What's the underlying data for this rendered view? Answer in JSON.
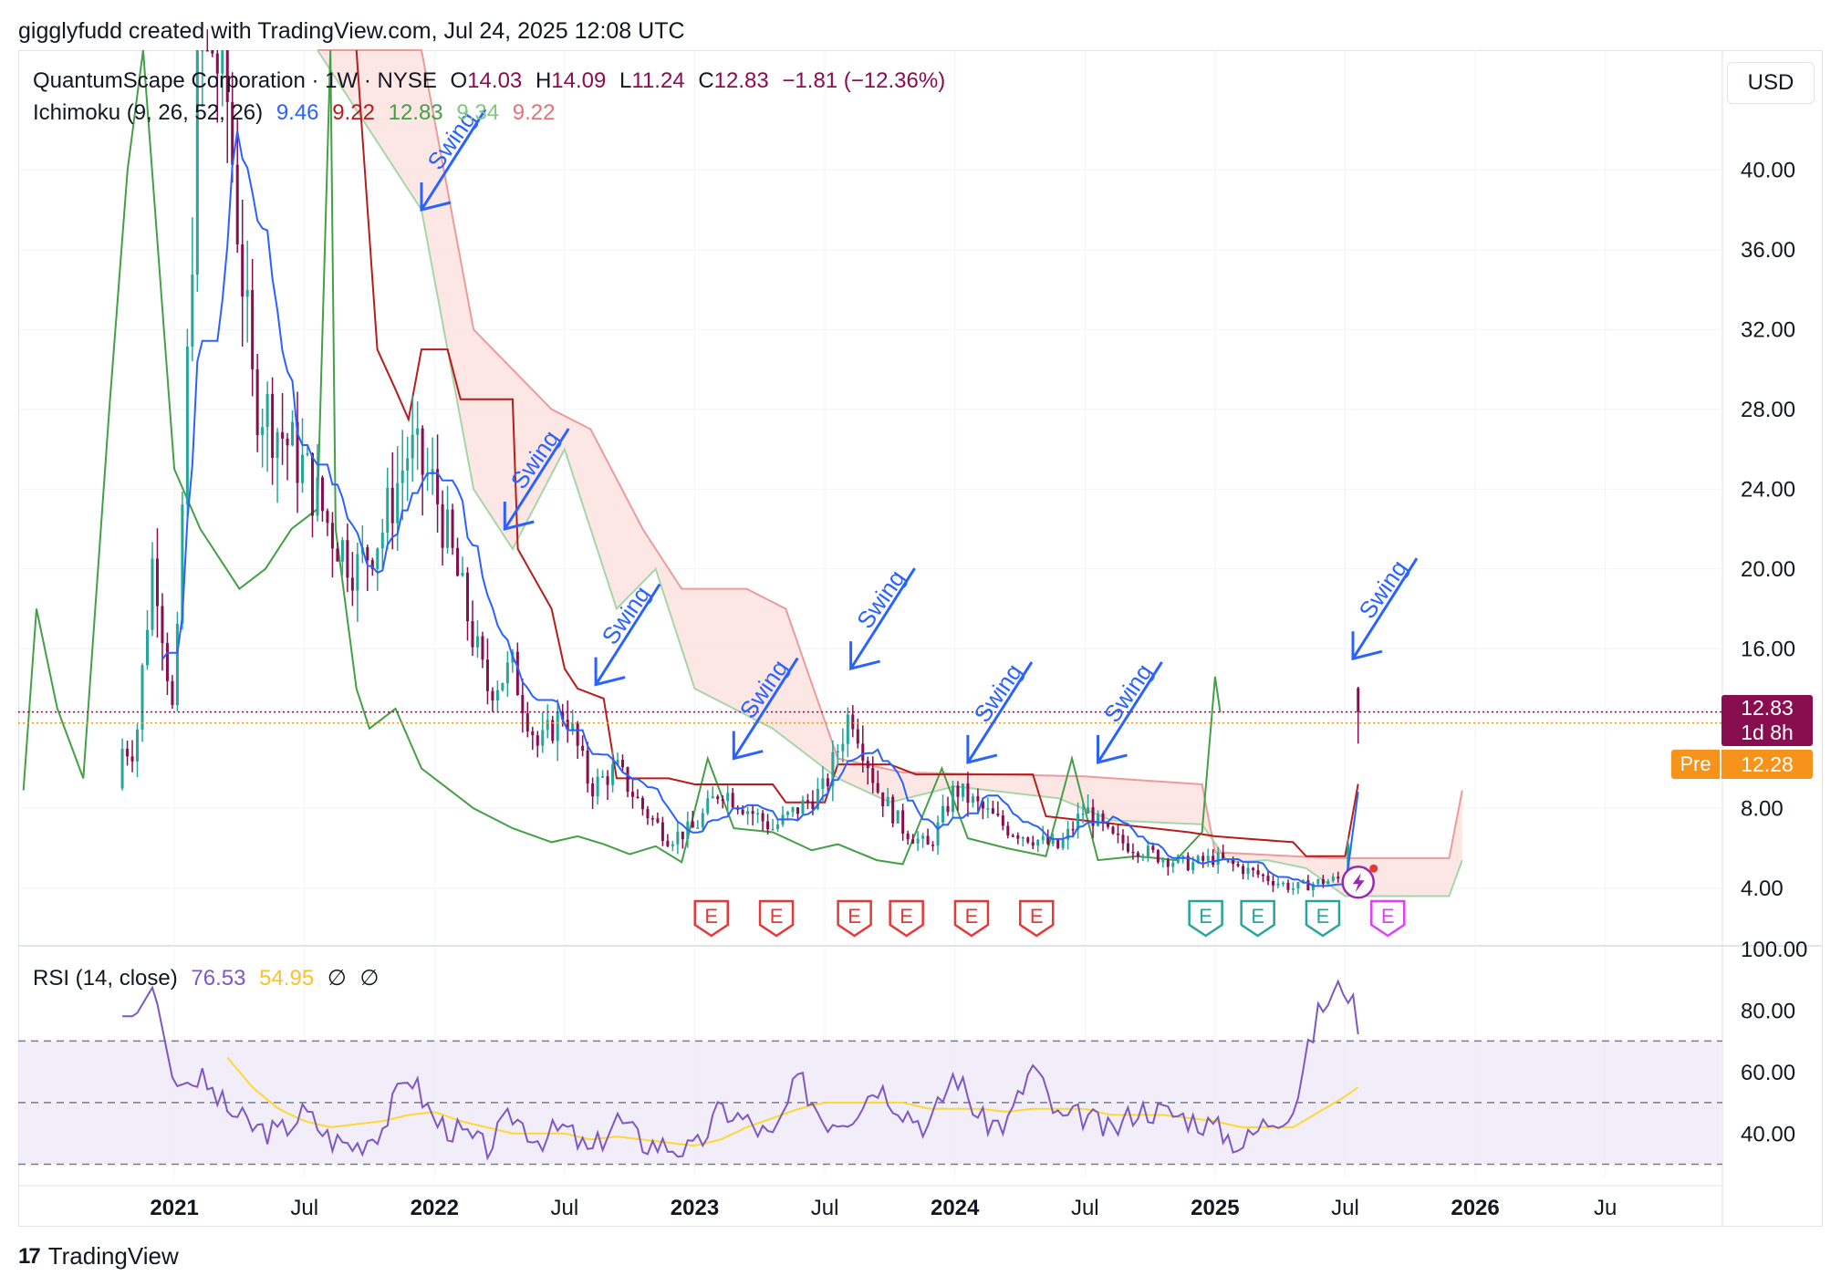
{
  "header": {
    "caption": "gigglyfudd created with TradingView.com, Jul 24, 2025 12:08 UTC"
  },
  "legend": {
    "symbol": "QuantumScape Corporation · 1W · NYSE",
    "open_label": "O",
    "open": "14.03",
    "high_label": "H",
    "high": "14.09",
    "low_label": "L",
    "low": "11.24",
    "close_label": "C",
    "close": "12.83",
    "change": "−1.81 (−12.36%)",
    "ichimoku_label": "Ichimoku (9, 26, 52, 26)",
    "ich_conversion": "9.46",
    "ich_base": "9.22",
    "ich_lagging": "12.83",
    "ich_leadA": "9.34",
    "ich_leadB": "9.22",
    "rsi_label": "RSI (14, close)",
    "rsi_value": "76.53",
    "rsi_ma": "54.95",
    "rsi_na1": "∅",
    "rsi_na2": "∅"
  },
  "currency": "USD",
  "price_tag": {
    "value": "12.83",
    "countdown": "1d 8h",
    "pre_label": "Pre",
    "pre_value": "12.28"
  },
  "footer": {
    "brand": "TradingView"
  },
  "colors": {
    "up": "#26a69a",
    "down": "#880e4f",
    "conversion": "#2962ff",
    "base": "#b71c1c",
    "lagging": "#43a047",
    "leadA": "#a5d6a7",
    "leadB": "#ef9a9a",
    "cloud_bear": "#fde3e0",
    "cloud_bull": "#e8f5e9",
    "rsi": "#7e57c2",
    "rsi_ma": "#fdd835",
    "swing": "#2962ff",
    "earnings_past": "#e53935",
    "earnings_beat": "#26a69a",
    "earnings_future": "#e040fb",
    "tag_close": "#880e4f",
    "tag_pre": "#f7931a"
  },
  "chart_data": [
    {
      "type": "candlestick",
      "series": [
        {
          "name": "QuantumScape Corporation · 1W · NYSE",
          "t": [
            2020.85,
            2020.92,
            2021.0,
            2021.1,
            2021.2,
            2021.3,
            2021.4,
            2021.5,
            2021.6,
            2021.7,
            2021.8,
            2021.9,
            2022.0,
            2022.1,
            2022.2,
            2022.3,
            2022.4,
            2022.5,
            2022.6,
            2022.7,
            2022.8,
            2022.9,
            2023.0,
            2023.1,
            2023.2,
            2023.3,
            2023.4,
            2023.5,
            2023.6,
            2023.7,
            2023.8,
            2023.9,
            2024.0,
            2024.1,
            2024.2,
            2024.3,
            2024.4,
            2024.5,
            2024.6,
            2024.7,
            2024.8,
            2024.9,
            2025.0,
            2025.1,
            2025.2,
            2025.3,
            2025.4,
            2025.5,
            2025.55
          ],
          "close": [
            11,
            21,
            12,
            48,
            44,
            29,
            27,
            25,
            22,
            20,
            22,
            26,
            24,
            19,
            14,
            15,
            11,
            13,
            9,
            10,
            8,
            6.5,
            7,
            9,
            8,
            7,
            8,
            9,
            13,
            9,
            7,
            6,
            9,
            8,
            7,
            6.5,
            6,
            8,
            6.5,
            6,
            5.5,
            5.2,
            5.5,
            5,
            4.5,
            4.0,
            4.3,
            4.5,
            12.83
          ]
        }
      ],
      "title": "QuantumScape Corporation · 1W · NYSE",
      "annotations": [
        "Swing",
        "Swing",
        "Swing",
        "Swing",
        "Swing",
        "Swing",
        "Swing",
        "Swing"
      ],
      "earnings": [
        "E",
        "E",
        "E",
        "E",
        "E",
        "E",
        "E",
        "E",
        "E",
        "E"
      ],
      "yticks": [
        "40.00",
        "36.00",
        "32.00",
        "28.00",
        "24.00",
        "20.00",
        "16.00",
        "8.00",
        "4.00"
      ],
      "xticks": [
        "2021",
        "Jul",
        "2022",
        "Jul",
        "2023",
        "Jul",
        "2024",
        "Jul",
        "2025",
        "Jul",
        "2026",
        "Ju"
      ],
      "ylim": [
        1.2,
        46
      ],
      "xlim": [
        2020.4,
        2026.95
      ],
      "grid": true
    },
    {
      "type": "line",
      "title": "RSI (14, close)",
      "series": [
        {
          "name": "RSI",
          "values": [
            78,
            88,
            55,
            58,
            48,
            42,
            40,
            47,
            38,
            36,
            42,
            60,
            44,
            40,
            35,
            46,
            38,
            42,
            33,
            45,
            37,
            36,
            34,
            48,
            44,
            38,
            58,
            44,
            46,
            56,
            48,
            42,
            60,
            44,
            43,
            62,
            44,
            46,
            40,
            48,
            47,
            45,
            42,
            36,
            44,
            48,
            80,
            89,
            76.53
          ]
        },
        {
          "name": "MA",
          "values": [
            null,
            null,
            null,
            null,
            65,
            55,
            48,
            44,
            42,
            43,
            44,
            46,
            47,
            44,
            42,
            40,
            40,
            40,
            38,
            39,
            38,
            37,
            36,
            38,
            42,
            45,
            48,
            50,
            50,
            50,
            50,
            48,
            48,
            48,
            47,
            48,
            48,
            48,
            46,
            46,
            46,
            45,
            44,
            42,
            42,
            42,
            47,
            52,
            54.95
          ]
        }
      ],
      "yticks": [
        "100.00",
        "80.00",
        "60.00",
        "40.00"
      ],
      "ylim": [
        26,
        100
      ]
    }
  ]
}
